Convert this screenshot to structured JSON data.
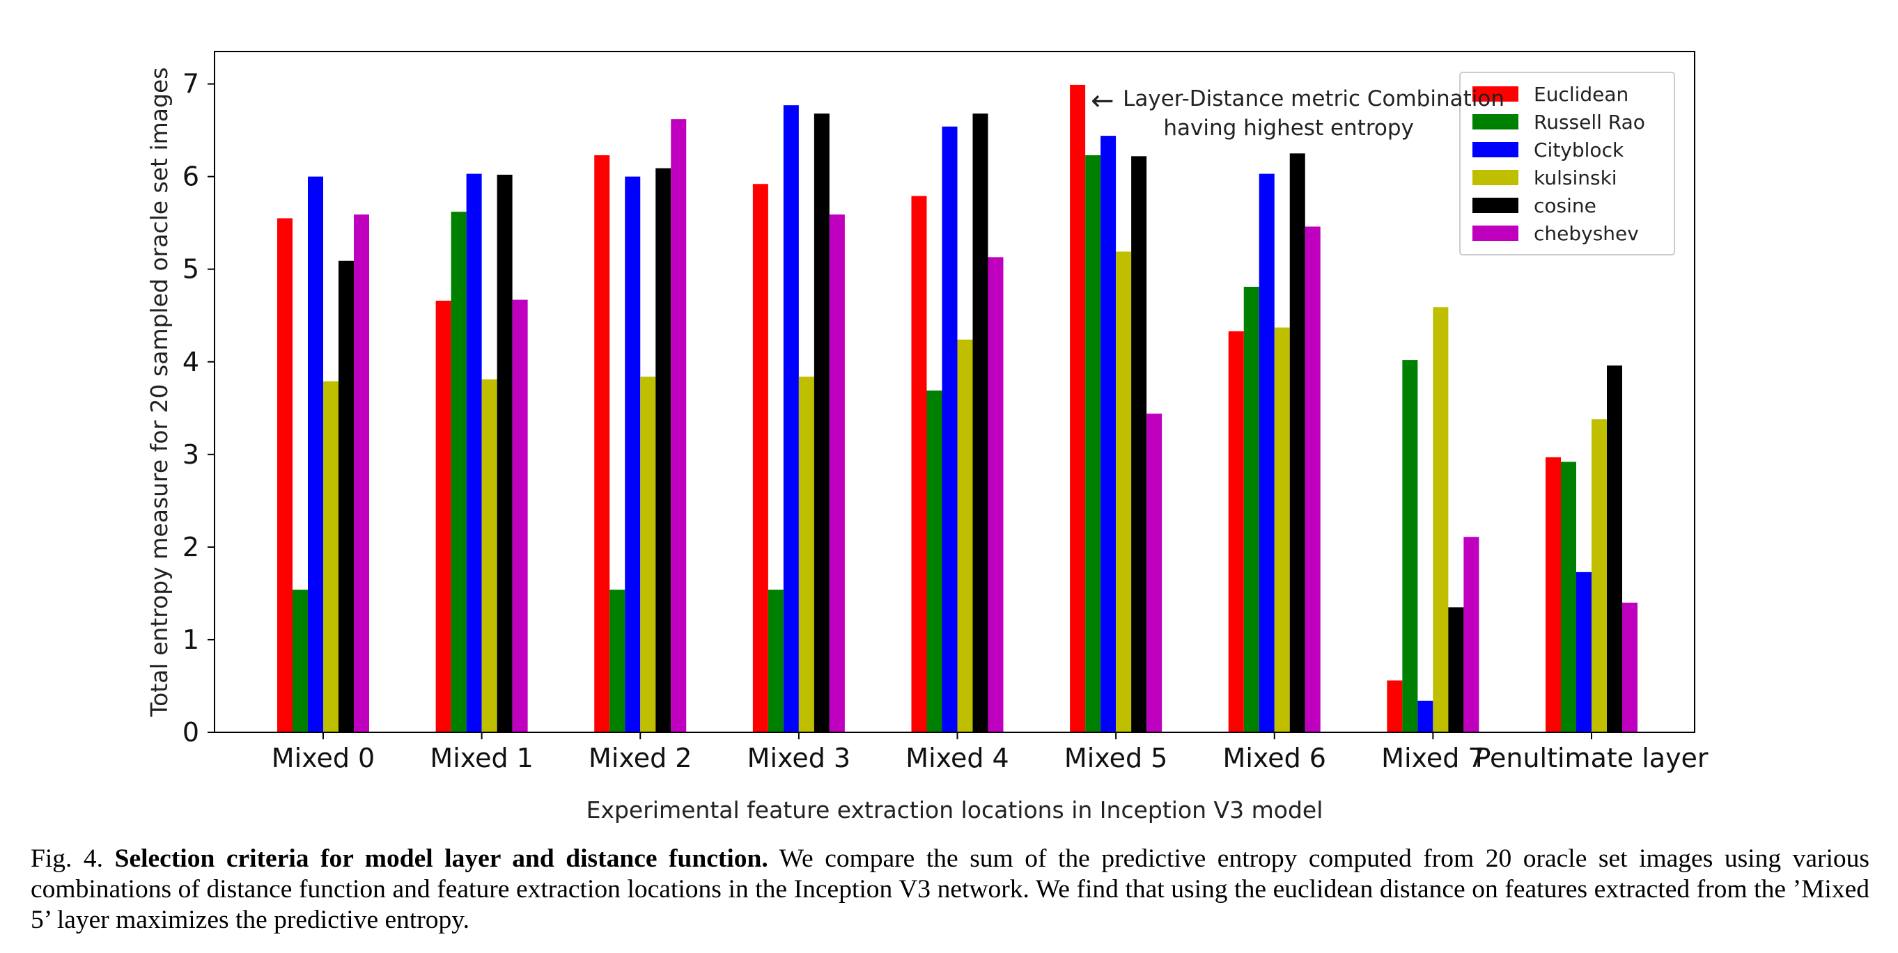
{
  "chart_data": {
    "type": "bar",
    "title": "",
    "xlabel": "Experimental feature extraction locations in Inception V3 model",
    "ylabel": "Total entropy measure for 20 sampled oracle set images",
    "ylim": [
      0,
      7.35
    ],
    "yticks": [
      "0",
      "1",
      "2",
      "3",
      "4",
      "5",
      "6",
      "7"
    ],
    "categories": [
      "Mixed 0",
      "Mixed 1",
      "Mixed 2",
      "Mixed 3",
      "Mixed 4",
      "Mixed 5",
      "Mixed 6",
      "Mixed 7",
      "Penultimate layer"
    ],
    "series": [
      {
        "name": "Euclidean",
        "color": "#ff0000",
        "values": [
          5.55,
          4.66,
          6.23,
          5.92,
          5.79,
          6.99,
          4.33,
          0.56,
          2.97
        ]
      },
      {
        "name": "Russell Rao",
        "color": "#008000",
        "values": [
          1.54,
          5.62,
          1.54,
          1.54,
          3.69,
          6.23,
          4.81,
          4.02,
          2.92
        ]
      },
      {
        "name": "Cityblock",
        "color": "#0000ff",
        "values": [
          6.0,
          6.03,
          6.0,
          6.77,
          6.54,
          6.44,
          6.03,
          0.34,
          1.73
        ]
      },
      {
        "name": "kulsinski",
        "color": "#bfbf00",
        "values": [
          3.79,
          3.81,
          3.84,
          3.84,
          4.24,
          5.19,
          4.37,
          4.59,
          3.38
        ]
      },
      {
        "name": "cosine",
        "color": "#000000",
        "values": [
          5.09,
          6.02,
          6.09,
          6.68,
          6.68,
          6.22,
          6.25,
          1.35,
          3.96
        ]
      },
      {
        "name": "chebyshev",
        "color": "#bf00bf",
        "values": [
          5.59,
          4.67,
          6.62,
          5.59,
          5.13,
          3.44,
          5.46,
          2.11,
          1.4
        ]
      }
    ],
    "grid": false,
    "legend_placement": "top-right",
    "annotation": {
      "line1": "Layer-Distance metric Combination",
      "line2": "having highest entropy",
      "arrow": "←",
      "target_category": "Mixed 5",
      "target_series": "Euclidean"
    }
  },
  "caption": {
    "label": "Fig. 4.",
    "bold": "Selection criteria for model layer and distance function.",
    "text": "We compare the sum of the predictive entropy computed from 20 oracle set images using various combinations of distance function and feature extraction locations in the Inception V3 network. We find that using the euclidean distance on features extracted from the ’Mixed 5’ layer maximizes the predictive entropy."
  }
}
